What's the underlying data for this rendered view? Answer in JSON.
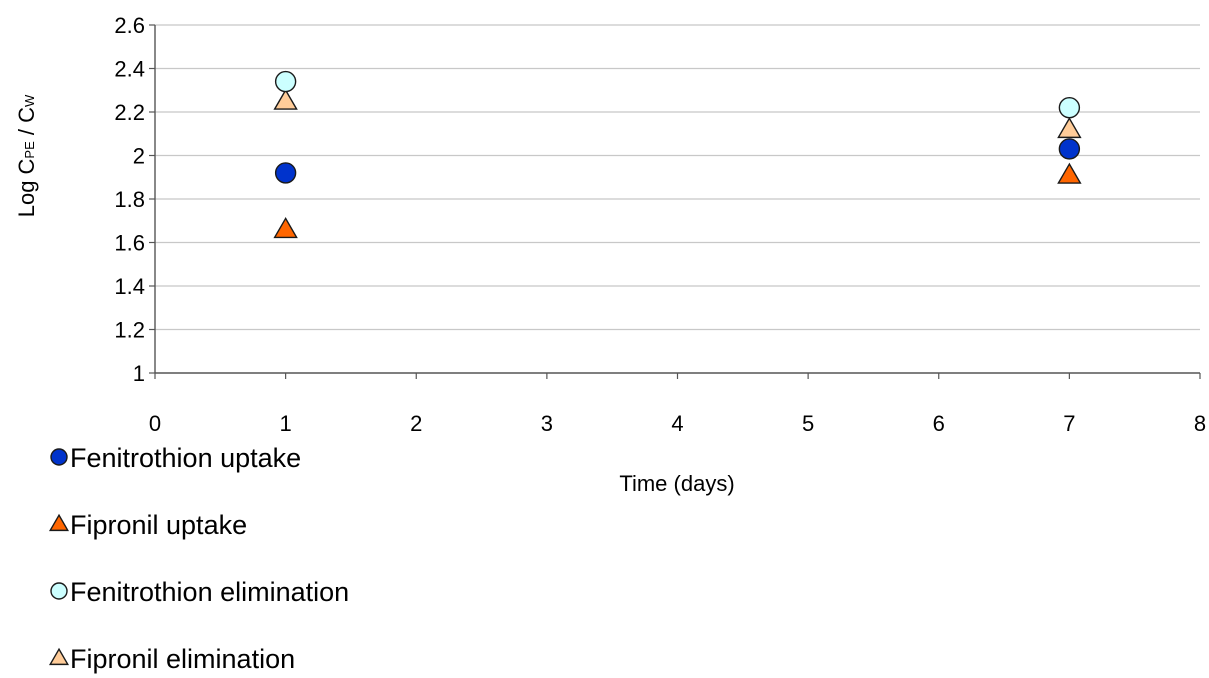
{
  "chart_data": {
    "type": "scatter",
    "title": "",
    "xlabel": "Time (days)",
    "ylabel": "Log C",
    "ylabel_sub1": "PE",
    "ylabel_mid": " / C",
    "ylabel_sub2": "W",
    "xlim": [
      0,
      8
    ],
    "ylim": [
      1,
      2.6
    ],
    "x_ticks": [
      0,
      1,
      2,
      3,
      4,
      5,
      6,
      7,
      8
    ],
    "x_tick_labels": [
      "0",
      "1",
      "2",
      "3",
      "4",
      "5",
      "6",
      "7",
      "8"
    ],
    "y_ticks": [
      1,
      1.2,
      1.4,
      1.6,
      1.8,
      2,
      2.2,
      2.4,
      2.6
    ],
    "y_tick_labels": [
      "1",
      "1.2",
      "1.4",
      "1.6",
      "1.8",
      "2",
      "2.2",
      "2.4",
      "2.6"
    ],
    "grid": true,
    "legend_position": "bottom-left",
    "series": [
      {
        "name": "Fenitrothion uptake",
        "marker": "circle",
        "color": "#0033cc",
        "points": [
          {
            "x": 1,
            "y": 1.92
          },
          {
            "x": 7,
            "y": 2.03
          }
        ]
      },
      {
        "name": "Fipronil uptake",
        "marker": "triangle",
        "color": "#ff6600",
        "points": [
          {
            "x": 1,
            "y": 1.66
          },
          {
            "x": 7,
            "y": 1.91
          }
        ]
      },
      {
        "name": "Fenitrothion elimination",
        "marker": "circle",
        "color": "#ccffff",
        "points": [
          {
            "x": 1,
            "y": 2.34
          },
          {
            "x": 7,
            "y": 2.22
          }
        ]
      },
      {
        "name": "Fipronil elimination",
        "marker": "triangle",
        "color": "#ffcc99",
        "points": [
          {
            "x": 1,
            "y": 2.25
          },
          {
            "x": 7,
            "y": 2.12
          }
        ]
      }
    ]
  }
}
